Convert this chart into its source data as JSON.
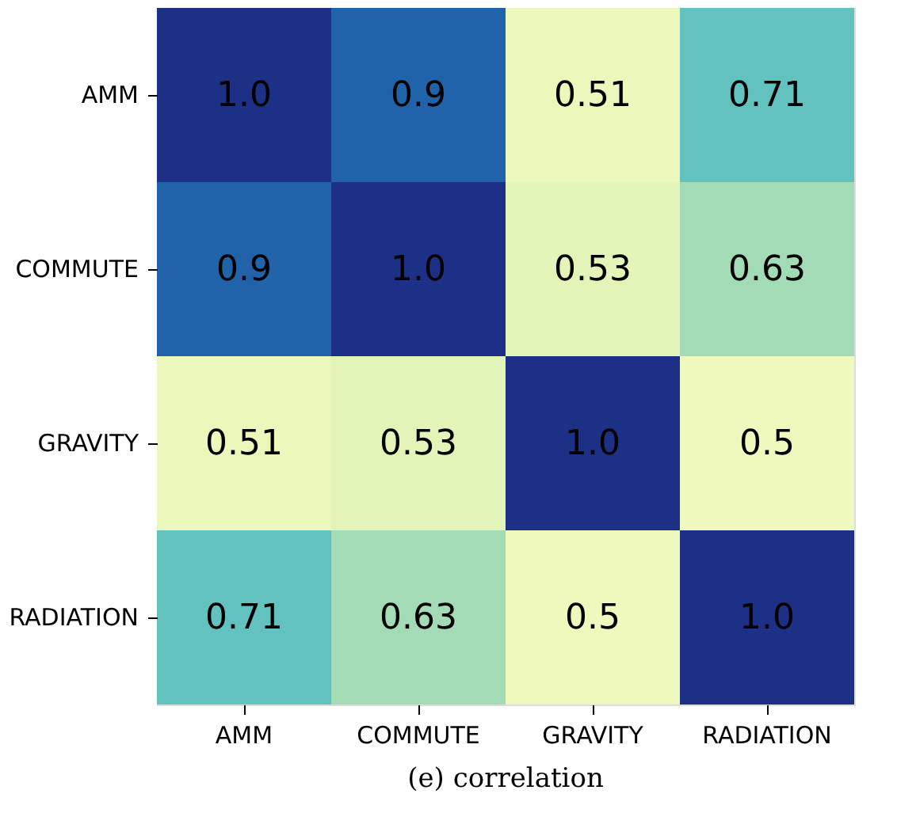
{
  "chart_data": {
    "type": "heatmap",
    "title": "(e) correlation",
    "categories": [
      "AMM",
      "COMMUTE",
      "GRAVITY",
      "RADIATION"
    ],
    "y_categories": [
      "AMM",
      "COMMUTE",
      "GRAVITY",
      "RADIATION"
    ],
    "cells": [
      [
        1.0,
        0.9,
        0.51,
        0.71
      ],
      [
        0.9,
        1.0,
        0.53,
        0.63
      ],
      [
        0.51,
        0.53,
        1.0,
        0.5
      ],
      [
        0.71,
        0.63,
        0.5,
        1.0
      ]
    ],
    "cell_labels": [
      [
        "1.0",
        "0.9",
        "0.51",
        "0.71"
      ],
      [
        "0.9",
        "1.0",
        "0.53",
        "0.63"
      ],
      [
        "0.51",
        "0.53",
        "1.0",
        "0.5"
      ],
      [
        "0.71",
        "0.63",
        "0.5",
        "1.0"
      ]
    ]
  }
}
